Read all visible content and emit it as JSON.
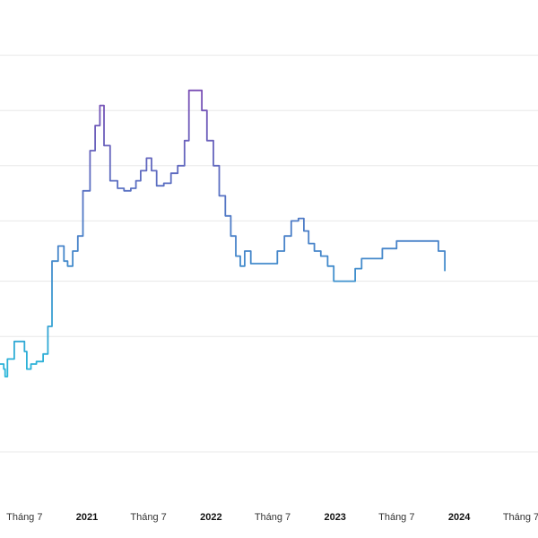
{
  "chart_data": {
    "type": "line",
    "title": "",
    "xlabel": "",
    "ylabel": "",
    "step": true,
    "grid": true,
    "legend": "none",
    "x_ticks": [
      {
        "label": "Tháng 7",
        "date": "2020-07-01",
        "bold": false
      },
      {
        "label": "2021",
        "date": "2021-01-01",
        "bold": true
      },
      {
        "label": "Tháng 7",
        "date": "2021-07-01",
        "bold": false
      },
      {
        "label": "2022",
        "date": "2022-01-01",
        "bold": true
      },
      {
        "label": "Tháng 7",
        "date": "2022-07-01",
        "bold": false
      },
      {
        "label": "2023",
        "date": "2023-01-01",
        "bold": true
      },
      {
        "label": "Tháng 7",
        "date": "2023-07-01",
        "bold": false
      },
      {
        "label": "2024",
        "date": "2024-01-01",
        "bold": true
      },
      {
        "label": "Tháng 7",
        "date": "2024-07-01",
        "bold": false
      }
    ],
    "xlim": [
      "2020-04-20",
      "2024-08-20"
    ],
    "ylim": [
      0,
      100
    ],
    "gridlines": [
      10,
      33,
      44,
      56,
      67,
      78,
      89
    ],
    "colors": {
      "low": "#29b6d9",
      "mid": "#4a7fc8",
      "high": "#7b4fb5",
      "grid": "#e8e8e8"
    },
    "series": [
      {
        "name": "",
        "points": [
          [
            "2020-04-20",
            27.5
          ],
          [
            "2020-05-01",
            26.5
          ],
          [
            "2020-05-05",
            25.0
          ],
          [
            "2020-05-12",
            28.5
          ],
          [
            "2020-06-01",
            32.0
          ],
          [
            "2020-06-20",
            32.0
          ],
          [
            "2020-07-01",
            30.0
          ],
          [
            "2020-07-08",
            26.5
          ],
          [
            "2020-07-20",
            27.5
          ],
          [
            "2020-08-05",
            28.0
          ],
          [
            "2020-08-25",
            29.5
          ],
          [
            "2020-09-08",
            35.0
          ],
          [
            "2020-09-20",
            48.0
          ],
          [
            "2020-10-08",
            51.0
          ],
          [
            "2020-10-25",
            48.0
          ],
          [
            "2020-11-05",
            47.0
          ],
          [
            "2020-11-20",
            50.0
          ],
          [
            "2020-12-05",
            53.0
          ],
          [
            "2020-12-20",
            62.0
          ],
          [
            "2021-01-10",
            70.0
          ],
          [
            "2021-01-25",
            75.0
          ],
          [
            "2021-02-08",
            79.0
          ],
          [
            "2021-02-20",
            71.0
          ],
          [
            "2021-03-10",
            64.0
          ],
          [
            "2021-04-01",
            62.5
          ],
          [
            "2021-04-20",
            62.0
          ],
          [
            "2021-05-10",
            62.5
          ],
          [
            "2021-05-25",
            64.0
          ],
          [
            "2021-06-08",
            66.0
          ],
          [
            "2021-06-25",
            68.5
          ],
          [
            "2021-07-10",
            66.0
          ],
          [
            "2021-07-25",
            63.0
          ],
          [
            "2021-08-15",
            63.5
          ],
          [
            "2021-09-05",
            65.5
          ],
          [
            "2021-09-25",
            67.0
          ],
          [
            "2021-10-15",
            72.0
          ],
          [
            "2021-10-28",
            82.0
          ],
          [
            "2021-11-20",
            82.0
          ],
          [
            "2021-12-05",
            78.0
          ],
          [
            "2021-12-20",
            72.0
          ],
          [
            "2022-01-08",
            67.0
          ],
          [
            "2022-01-25",
            61.0
          ],
          [
            "2022-02-12",
            57.0
          ],
          [
            "2022-02-28",
            53.0
          ],
          [
            "2022-03-15",
            49.0
          ],
          [
            "2022-03-28",
            47.0
          ],
          [
            "2022-04-10",
            50.0
          ],
          [
            "2022-04-28",
            47.5
          ],
          [
            "2022-05-20",
            47.5
          ],
          [
            "2022-06-10",
            47.5
          ],
          [
            "2022-07-01",
            47.5
          ],
          [
            "2022-07-15",
            50.0
          ],
          [
            "2022-08-05",
            53.0
          ],
          [
            "2022-08-25",
            56.0
          ],
          [
            "2022-09-15",
            56.5
          ],
          [
            "2022-10-01",
            54.0
          ],
          [
            "2022-10-15",
            51.5
          ],
          [
            "2022-11-01",
            50.0
          ],
          [
            "2022-11-20",
            49.0
          ],
          [
            "2022-12-10",
            47.0
          ],
          [
            "2022-12-28",
            44.0
          ],
          [
            "2023-01-15",
            44.0
          ],
          [
            "2023-02-08",
            44.0
          ],
          [
            "2023-03-01",
            46.5
          ],
          [
            "2023-03-20",
            48.5
          ],
          [
            "2023-04-10",
            48.5
          ],
          [
            "2023-05-01",
            48.5
          ],
          [
            "2023-05-20",
            50.5
          ],
          [
            "2023-06-10",
            50.5
          ],
          [
            "2023-07-01",
            52.0
          ],
          [
            "2023-07-20",
            52.0
          ],
          [
            "2023-08-10",
            52.0
          ],
          [
            "2023-09-01",
            52.0
          ],
          [
            "2023-09-20",
            52.0
          ],
          [
            "2023-10-10",
            52.0
          ],
          [
            "2023-11-01",
            50.0
          ],
          [
            "2023-11-20",
            46.0
          ]
        ]
      }
    ]
  }
}
